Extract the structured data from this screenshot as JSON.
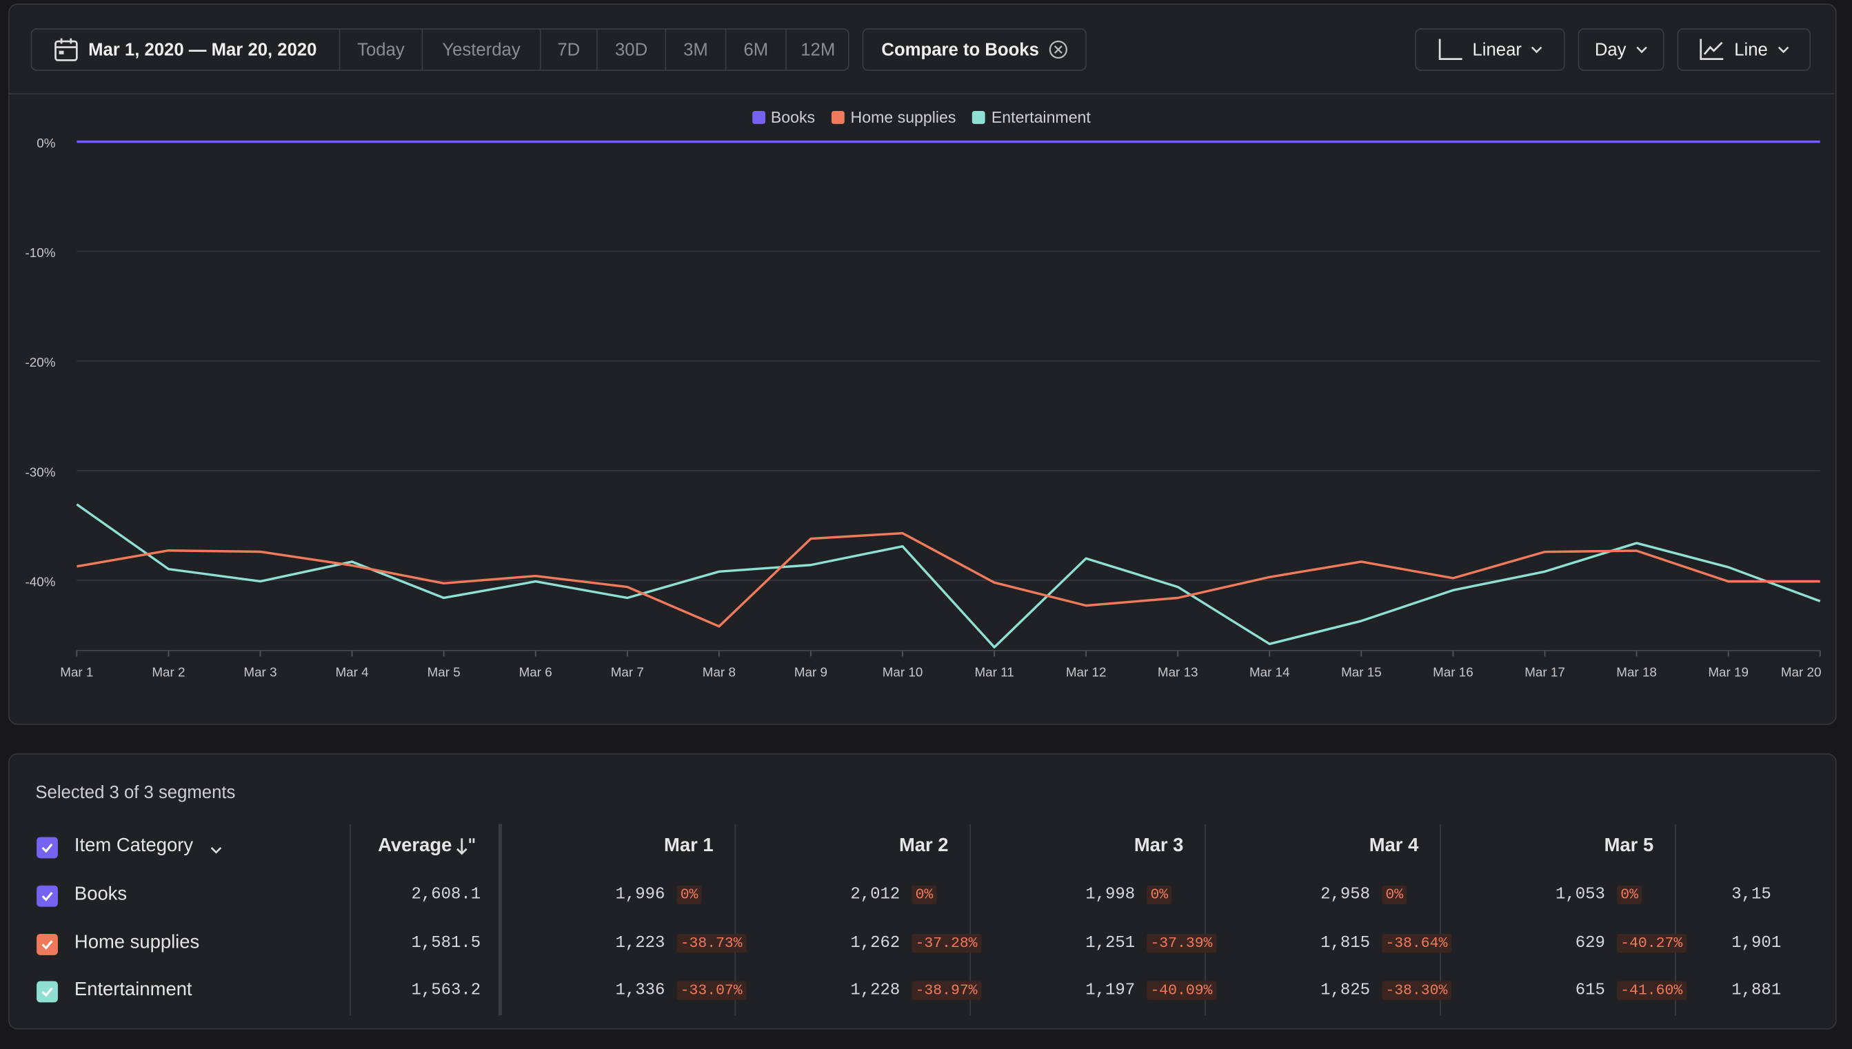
{
  "toolbar": {
    "date_range": "Mar 1, 2020 — Mar 20, 2020",
    "presets": [
      "Today",
      "Yesterday",
      "7D",
      "30D",
      "3M",
      "6M",
      "12M"
    ],
    "compare": "Compare to Books",
    "scale": "Linear",
    "interval": "Day",
    "chart_type": "Line"
  },
  "chart_data": {
    "type": "line",
    "categories": [
      "Mar 1",
      "Mar 2",
      "Mar 3",
      "Mar 4",
      "Mar 5",
      "Mar 6",
      "Mar 7",
      "Mar 8",
      "Mar 9",
      "Mar 10",
      "Mar 11",
      "Mar 12",
      "Mar 13",
      "Mar 14",
      "Mar 15",
      "Mar 16",
      "Mar 17",
      "Mar 18",
      "Mar 19",
      "Mar 20"
    ],
    "series": [
      {
        "name": "Books",
        "color": "#7463f0",
        "values": [
          0,
          0,
          0,
          0,
          0,
          0,
          0,
          0,
          0,
          0,
          0,
          0,
          0,
          0,
          0,
          0,
          0,
          0,
          0,
          0
        ]
      },
      {
        "name": "Home supplies",
        "color": "#f07b5c",
        "values": [
          -38.73,
          -37.28,
          -37.39,
          -38.64,
          -40.27,
          -39.6,
          -40.6,
          -44.2,
          -36.2,
          -35.7,
          -40.2,
          -42.3,
          -41.6,
          -39.7,
          -38.3,
          -39.8,
          -37.4,
          -37.3,
          -40.1,
          -40.1
        ]
      },
      {
        "name": "Entertainment",
        "color": "#8fe0d2",
        "values": [
          -33.07,
          -38.97,
          -40.09,
          -38.3,
          -41.6,
          -40.1,
          -41.6,
          -39.2,
          -38.6,
          -36.9,
          -46.1,
          -38.0,
          -40.6,
          -45.8,
          -43.7,
          -40.9,
          -39.2,
          -36.6,
          -38.8,
          -41.9
        ]
      }
    ],
    "ylim": [
      -46.4,
      0
    ],
    "yticks": [
      {
        "value": 0,
        "label": "0%"
      },
      {
        "value": -10,
        "label": "-10%"
      },
      {
        "value": -20,
        "label": "-20%"
      },
      {
        "value": -30,
        "label": "-30%"
      },
      {
        "value": -40,
        "label": "-40%"
      }
    ],
    "grid": true,
    "legend": "top"
  },
  "table": {
    "caption": "Selected 3 of 3 segments",
    "group_header": "Item Category",
    "average_header": "Average",
    "columns": [
      "Mar 1",
      "Mar 2",
      "Mar 3",
      "Mar 4",
      "Mar 5"
    ],
    "rows": [
      {
        "name": "Books",
        "average": "2,608.1",
        "cells": [
          [
            "1,996",
            "0%"
          ],
          [
            "2,012",
            "0%"
          ],
          [
            "1,998",
            "0%"
          ],
          [
            "2,958",
            "0%"
          ],
          [
            "1,053",
            "0%"
          ]
        ],
        "partial": "3,15"
      },
      {
        "name": "Home supplies",
        "average": "1,581.5",
        "cells": [
          [
            "1,223",
            "-38.73%"
          ],
          [
            "1,262",
            "-37.28%"
          ],
          [
            "1,251",
            "-37.39%"
          ],
          [
            "1,815",
            "-38.64%"
          ],
          [
            "629",
            "-40.27%"
          ]
        ],
        "partial": "1,901"
      },
      {
        "name": "Entertainment",
        "average": "1,563.2",
        "cells": [
          [
            "1,336",
            "-33.07%"
          ],
          [
            "1,228",
            "-38.97%"
          ],
          [
            "1,197",
            "-40.09%"
          ],
          [
            "1,825",
            "-38.30%"
          ],
          [
            "615",
            "-41.60%"
          ]
        ],
        "partial": "1,881"
      }
    ]
  }
}
